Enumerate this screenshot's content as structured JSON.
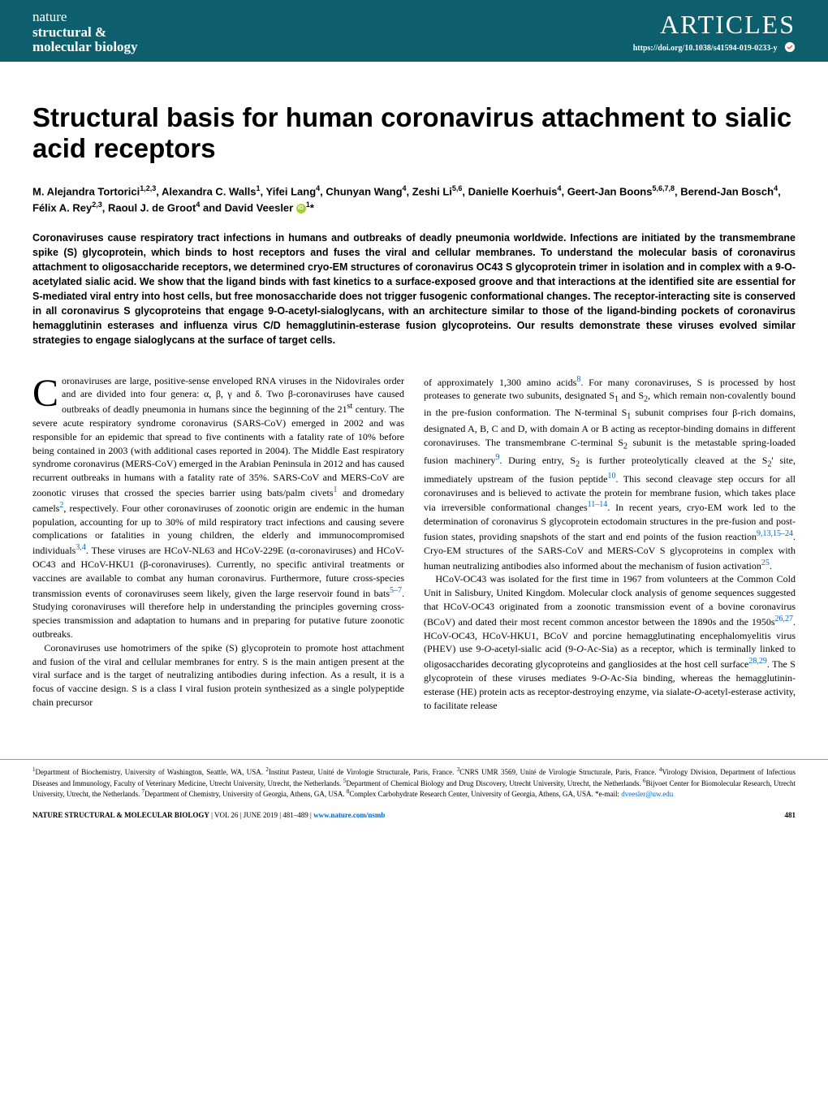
{
  "header": {
    "journal_line1": "nature",
    "journal_line2": "structural &",
    "journal_line3": "molecular biology",
    "section_label": "ARTICLES",
    "doi": "https://doi.org/10.1038/s41594-019-0233-y",
    "header_bg_color": "#0d5f6e",
    "header_text_color": "#ffffff"
  },
  "title": "Structural basis for human coronavirus attachment to sialic acid receptors",
  "authors_html": "M. Alejandra Tortorici<sup>1,2,3</sup>, Alexandra C. Walls<sup>1</sup>, Yifei Lang<sup>4</sup>, Chunyan Wang<sup>4</sup>, Zeshi Li<sup>5,6</sup>, Danielle Koerhuis<sup>4</sup>, Geert-Jan Boons<sup>5,6,7,8</sup>, Berend-Jan Bosch<sup>4</sup>, Félix A. Rey<sup>2,3</sup>, Raoul J. de Groot<sup>4</sup> and David Veesler <span class='orcid-icon' data-name='orcid-icon' data-interactable='false'></span><sup>1</sup>*",
  "abstract": "Coronaviruses cause respiratory tract infections in humans and outbreaks of deadly pneumonia worldwide. Infections are initiated by the transmembrane spike (S) glycoprotein, which binds to host receptors and fuses the viral and cellular membranes. To understand the molecular basis of coronavirus attachment to oligosaccharide receptors, we determined cryo-EM structures of coronavirus OC43 S glycoprotein trimer in isolation and in complex with a 9-O-acetylated sialic acid. We show that the ligand binds with fast kinetics to a surface-exposed groove and that interactions at the identified site are essential for S-mediated viral entry into host cells, but free monosaccharide does not trigger fusogenic conformational changes. The receptor-interacting site is conserved in all coronavirus S glycoproteins that engage 9-O-acetyl-sialoglycans, with an architecture similar to those of the ligand-binding pockets of coronavirus hemagglutinin esterases and influenza virus C/D hemagglutinin-esterase fusion glycoproteins. Our results demonstrate these viruses evolved similar strategies to engage sialoglycans at the surface of target cells.",
  "body": {
    "col1_para1": "oronaviruses are large, positive-sense enveloped RNA viruses in the Nidovirales order and are divided into four genera: α, β, γ and δ. Two β-coronaviruses have caused outbreaks of deadly pneumonia in humans since the beginning of the 21<sup>st</sup> century. The severe acute respiratory syndrome coronavirus (SARS-CoV) emerged in 2002 and was responsible for an epidemic that spread to five continents with a fatality rate of 10% before being contained in 2003 (with additional cases reported in 2004). The Middle East respiratory syndrome coronavirus (MERS-CoV) emerged in the Arabian Peninsula in 2012 and has caused recurrent outbreaks in humans with a fatality rate of 35%. SARS-CoV and MERS-CoV are zoonotic viruses that crossed the species barrier using bats/palm civets<sup class='ref-link'>1</sup> and dromedary camels<sup class='ref-link'>2</sup>, respectively. Four other coronaviruses of zoonotic origin are endemic in the human population, accounting for up to 30% of mild respiratory tract infections and causing severe complications or fatalities in young children, the elderly and immunocompromised individuals<sup class='ref-link'>3,4</sup>. These viruses are HCoV-NL63 and HCoV-229E (α-coronaviruses) and HCoV-OC43 and HCoV-HKU1 (β-coronaviruses). Currently, no specific antiviral treatments or vaccines are available to combat any human coronavirus. Furthermore, future cross-species transmission events of coronaviruses seem likely, given the large reservoir found in bats<sup class='ref-link'>5–7</sup>. Studying coronaviruses will therefore help in understanding the principles governing cross-species transmission and adaptation to humans and in preparing for putative future zoonotic outbreaks.",
    "col1_para2": "Coronaviruses use homotrimers of the spike (S) glycoprotein to promote host attachment and fusion of the viral and cellular membranes for entry. S is the main antigen present at the viral surface and is the target of neutralizing antibodies during infection. As a result, it is a focus of vaccine design. S is a class I viral fusion protein synthesized as a single polypeptide chain precursor",
    "col2_para1": "of approximately 1,300 amino acids<sup class='ref-link'>8</sup>. For many coronaviruses, S is processed by host proteases to generate two subunits, designated S<sub>1</sub> and S<sub>2</sub>, which remain non-covalently bound in the pre-fusion conformation. The N-terminal S<sub>1</sub> subunit comprises four β-rich domains, designated A, B, C and D, with domain A or B acting as receptor-binding domains in different coronaviruses. The transmembrane C-terminal S<sub>2</sub> subunit is the metastable spring-loaded fusion machinery<sup class='ref-link'>9</sup>. During entry, S<sub>2</sub> is further proteolytically cleaved at the S<sub>2</sub>' site, immediately upstream of the fusion peptide<sup class='ref-link'>10</sup>. This second cleavage step occurs for all coronaviruses and is believed to activate the protein for membrane fusion, which takes place via irreversible conformational changes<sup class='ref-link'>11–14</sup>. In recent years, cryo-EM work led to the determination of coronavirus S glycoprotein ectodomain structures in the pre-fusion and post-fusion states, providing snapshots of the start and end points of the fusion reaction<sup class='ref-link'>9,13,15–24</sup>. Cryo-EM structures of the SARS-CoV and MERS-CoV S glycoproteins in complex with human neutralizing antibodies also informed about the mechanism of fusion activation<sup class='ref-link'>25</sup>.",
    "col2_para2": "HCoV-OC43 was isolated for the first time in 1967 from volunteers at the Common Cold Unit in Salisbury, United Kingdom. Molecular clock analysis of genome sequences suggested that HCoV-OC43 originated from a zoonotic transmission event of a bovine coronavirus (BCoV) and dated their most recent common ancestor between the 1890s and the 1950s<sup class='ref-link'>26,27</sup>. HCoV-OC43, HCoV-HKU1, BCoV and porcine hemagglutinating encephalomyelitis virus (PHEV) use 9-<i>O</i>-acetyl-sialic acid (9-<i>O</i>-Ac-Sia) as a receptor, which is terminally linked to oligosaccharides decorating glycoproteins and gangliosides at the host cell surface<sup class='ref-link'>28,29</sup>. The S glycoprotein of these viruses mediates 9-<i>O</i>-Ac-Sia binding, whereas the hemagglutinin-esterase (HE) protein acts as receptor-destroying enzyme, via sialate-<i>O</i>-acetyl-esterase activity, to facilitate release"
  },
  "affiliations": "<sup>1</sup>Department of Biochemistry, University of Washington, Seattle, WA, USA. <sup>2</sup>Institut Pasteur, Unité de Virologie Structurale, Paris, France. <sup>3</sup>CNRS UMR 3569, Unité de Virologie Structurale, Paris, France. <sup>4</sup>Virology Division, Department of Infectious Diseases and Immunology, Faculty of Veterinary Medicine, Utrecht University, Utrecht, the Netherlands. <sup>5</sup>Department of Chemical Biology and Drug Discovery, Utrecht University, Utrecht, the Netherlands. <sup>6</sup>Bijvoet Center for Biomolecular Research, Utrecht University, Utrecht, the Netherlands. <sup>7</sup>Department of Chemistry, University of Georgia, Athens, GA, USA. <sup>8</sup>Complex Carbohydrate Research Center, University of Georgia, Athens, GA, USA. *e-mail: <span class='email-link'>dveesler@uw.edu</span>",
  "footer": {
    "journal_caps": "NATURE STRUCTURAL & MOLECULAR BIOLOGY",
    "vol_info": " | VOL 26 | JUNE 2019 | 481–489 | ",
    "url": "www.nature.com/nsmb",
    "page": "481"
  },
  "colors": {
    "link_color": "#0066cc",
    "text_color": "#000000",
    "orcid_color": "#a6ce39"
  }
}
